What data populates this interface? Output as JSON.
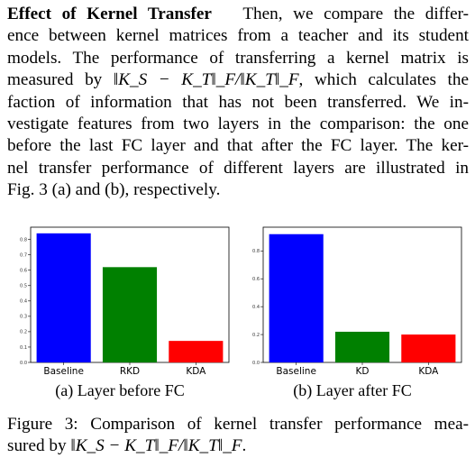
{
  "paragraph": {
    "heading": "Effect of Kernel Transfer",
    "line1_rest": "Then, we compare the differ-",
    "line2": "ence between kernel matrices from a teacher and its student",
    "line3": "models. The performance of transferring a kernel matrix is",
    "line4_pre": "measured by ",
    "line4_formula": "‖K_S − K_T‖_F/‖K_T‖_F",
    "line4_post": ", which calculates the",
    "line5": "faction of information that has not been transferred. We in-",
    "line6": "vestigate features from two layers in the comparison: the one",
    "line7": "before the last FC layer and that after the FC layer. The ker-",
    "line8": "nel transfer performance of different layers are illustrated in",
    "line9": "Fig. 3 (a) and (b), respectively."
  },
  "figure": {
    "caption_line1": "Figure 3: Comparison of kernel transfer performance mea-",
    "caption_line2_pre": "sured by ",
    "caption_formula": "‖K_S − K_T‖_F/‖K_T‖_F",
    "caption_line2_post": "."
  },
  "chart_data": [
    {
      "type": "bar",
      "caption": "(a) Layer before FC",
      "categories": [
        "Baseline",
        "RKD",
        "KDA"
      ],
      "values": [
        0.84,
        0.62,
        0.14
      ],
      "colors": [
        "#0000ff",
        "#008000",
        "#ff0000"
      ],
      "ylim": [
        0,
        0.88
      ],
      "yticks": [
        "0.0",
        "0.1",
        "0.2",
        "0.3",
        "0.4",
        "0.5",
        "0.6",
        "0.7",
        "0.8"
      ],
      "ytick_values": [
        0,
        0.1,
        0.2,
        0.3,
        0.4,
        0.5,
        0.6,
        0.7,
        0.8
      ]
    },
    {
      "type": "bar",
      "caption": "(b) Layer after FC",
      "categories": [
        "Baseline",
        "KD",
        "KDA"
      ],
      "values": [
        0.92,
        0.22,
        0.2
      ],
      "colors": [
        "#0000ff",
        "#008000",
        "#ff0000"
      ],
      "ylim": [
        0,
        0.97
      ],
      "yticks": [
        "0.0",
        "0.2",
        "0.4",
        "0.6",
        "0.8"
      ],
      "ytick_values": [
        0,
        0.2,
        0.4,
        0.6,
        0.8
      ]
    }
  ]
}
